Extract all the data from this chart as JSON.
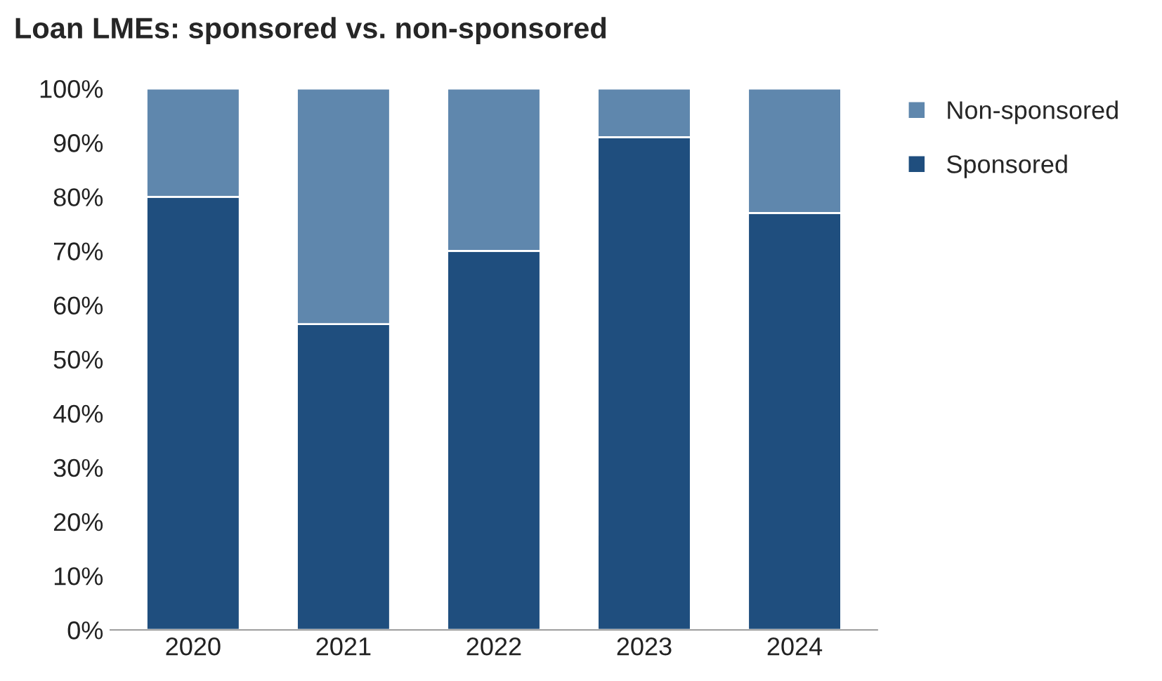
{
  "chart_data": {
    "type": "bar",
    "title": "Loan LMEs: sponsored vs. non-sponsored",
    "categories": [
      "2020",
      "2021",
      "2022",
      "2023",
      "2024"
    ],
    "stacked": true,
    "series": [
      {
        "name": "Sponsored",
        "color": "#1f4e7e",
        "values": [
          80,
          56.5,
          70,
          91,
          77
        ]
      },
      {
        "name": "Non-sponsored",
        "color": "#5f87ad",
        "values": [
          20,
          43.5,
          30,
          9,
          23
        ]
      }
    ],
    "ylim": [
      0,
      100
    ],
    "yticks": [
      {
        "value": 0,
        "label": "0%"
      },
      {
        "value": 10,
        "label": "10%"
      },
      {
        "value": 20,
        "label": "20%"
      },
      {
        "value": 30,
        "label": "30%"
      },
      {
        "value": 40,
        "label": "40%"
      },
      {
        "value": 50,
        "label": "50%"
      },
      {
        "value": 60,
        "label": "60%"
      },
      {
        "value": 70,
        "label": "70%"
      },
      {
        "value": 80,
        "label": "80%"
      },
      {
        "value": 90,
        "label": "90%"
      },
      {
        "value": 100,
        "label": "100%"
      }
    ],
    "legend": "right",
    "grid": false
  }
}
